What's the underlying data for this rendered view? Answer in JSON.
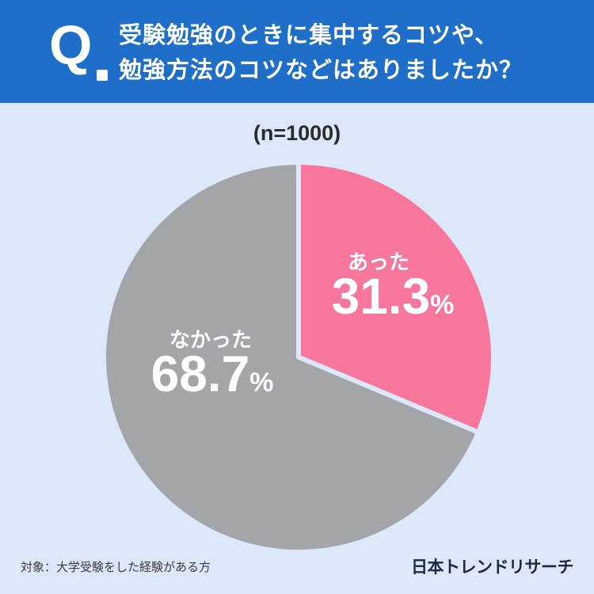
{
  "header": {
    "q_label": "Q",
    "question_line1": "受験勉強のときに集中するコツや、",
    "question_line2": "勉強方法のコツなどはありましたか？"
  },
  "sample_size": "(n=1000)",
  "chart_data": {
    "type": "pie",
    "slices": [
      {
        "label": "あった",
        "value": 31.3,
        "display": "31.3",
        "unit": "%",
        "color": "#f7779c"
      },
      {
        "label": "なかった",
        "value": 68.7,
        "display": "68.7",
        "unit": "%",
        "color": "#a4a5a9"
      }
    ],
    "start_angle_deg": 0,
    "direction": "clockwise"
  },
  "footer": {
    "note": "対象：大学受験をした経験がある方",
    "brand": "日本トレンドリサーチ"
  },
  "colors": {
    "header_bg": "#1f6fca",
    "page_bg": "#dce8fa",
    "slice_border": "#dce8fa"
  }
}
